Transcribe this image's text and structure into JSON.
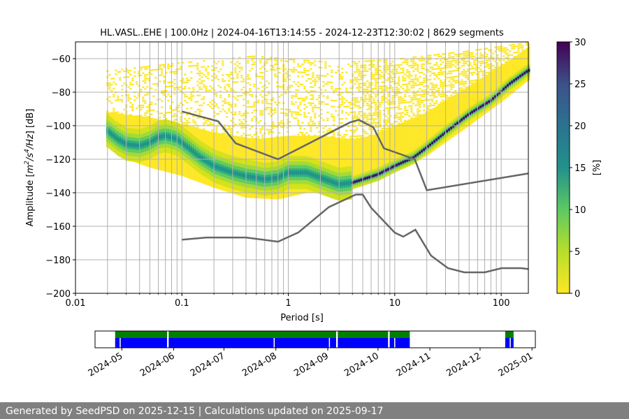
{
  "chart_data": [
    {
      "type": "heatmap",
      "title": "HL.VASL..EHE | 100.0Hz | 2024-04-16T13:14:55 - 2024-12-23T12:30:02 | 8629 segments",
      "xlabel": "Period [s]",
      "ylabel_parts": {
        "lead": "Amplitude [",
        "m": "m",
        "e1": "2",
        "s": "/s",
        "e2": "4",
        "hz": "/Hz",
        "tail": "] [dB]"
      },
      "xscale": "log",
      "xlim": [
        0.01,
        180
      ],
      "ylim": [
        -200,
        -50
      ],
      "xticks": [
        {
          "value": 0.01,
          "label": "0.01"
        },
        {
          "value": 0.1,
          "label": "0.1"
        },
        {
          "value": 1,
          "label": "1"
        },
        {
          "value": 10,
          "label": "10"
        },
        {
          "value": 100,
          "label": "100"
        }
      ],
      "yticks": [
        {
          "value": -60,
          "label": "−60"
        },
        {
          "value": -80,
          "label": "−80"
        },
        {
          "value": -100,
          "label": "−100"
        },
        {
          "value": -120,
          "label": "−120"
        },
        {
          "value": -140,
          "label": "−140"
        },
        {
          "value": -160,
          "label": "−160"
        },
        {
          "value": -180,
          "label": "−180"
        },
        {
          "value": -200,
          "label": "−200"
        }
      ],
      "grid": true,
      "colorbar": {
        "label": "[%]",
        "min": 0,
        "max": 30,
        "ticks": [
          "0",
          "5",
          "10",
          "15",
          "20",
          "25",
          "30"
        ],
        "colormap": [
          "#fde725",
          "#5ec962",
          "#21918c",
          "#3b528b",
          "#440154"
        ]
      },
      "psd_mode": [
        [
          0.02,
          -103
        ],
        [
          0.025,
          -108
        ],
        [
          0.03,
          -111
        ],
        [
          0.04,
          -112
        ],
        [
          0.05,
          -110
        ],
        [
          0.06,
          -107
        ],
        [
          0.07,
          -106
        ],
        [
          0.09,
          -108
        ],
        [
          0.12,
          -114
        ],
        [
          0.15,
          -119
        ],
        [
          0.2,
          -124
        ],
        [
          0.3,
          -128
        ],
        [
          0.4,
          -130
        ],
        [
          0.5,
          -131
        ],
        [
          0.6,
          -132
        ],
        [
          0.8,
          -131
        ],
        [
          1.0,
          -128
        ],
        [
          1.5,
          -128
        ],
        [
          2.0,
          -131
        ],
        [
          3.0,
          -135
        ],
        [
          4.0,
          -134
        ],
        [
          5.0,
          -132
        ],
        [
          7.0,
          -129
        ],
        [
          10.0,
          -124
        ],
        [
          15.0,
          -119
        ],
        [
          20.0,
          -113
        ],
        [
          30.0,
          -104
        ],
        [
          50.0,
          -93
        ],
        [
          80.0,
          -85
        ],
        [
          120.0,
          -75
        ],
        [
          180.0,
          -67
        ]
      ],
      "psd_low": [
        [
          0.02,
          -110
        ],
        [
          0.03,
          -120
        ],
        [
          0.05,
          -125
        ],
        [
          0.1,
          -130
        ],
        [
          0.2,
          -137
        ],
        [
          0.4,
          -143
        ],
        [
          0.8,
          -144
        ],
        [
          1.5,
          -140
        ],
        [
          3.0,
          -139
        ],
        [
          5.0,
          -135
        ],
        [
          10.0,
          -127
        ],
        [
          20.0,
          -118
        ],
        [
          50.0,
          -100
        ],
        [
          100.0,
          -86
        ],
        [
          180.0,
          -73
        ]
      ],
      "psd_high": [
        [
          0.02,
          -92
        ],
        [
          0.05,
          -95
        ],
        [
          0.1,
          -99
        ],
        [
          0.2,
          -104
        ],
        [
          0.5,
          -108
        ],
        [
          1.0,
          -106
        ],
        [
          2.0,
          -106
        ],
        [
          4.0,
          -108
        ],
        [
          6.0,
          -106
        ],
        [
          10.0,
          -100
        ],
        [
          20.0,
          -92
        ],
        [
          40.0,
          -80
        ],
        [
          80.0,
          -68
        ],
        [
          140.0,
          -58
        ],
        [
          180.0,
          -53
        ]
      ],
      "sparse_band": [
        [
          0.02,
          -67
        ],
        [
          0.1,
          -62
        ],
        [
          0.5,
          -58
        ],
        [
          1.0,
          -60
        ],
        [
          3.0,
          -62
        ],
        [
          10.0,
          -60
        ],
        [
          50.0,
          -55
        ],
        [
          180.0,
          -50
        ]
      ],
      "nhnm": [
        [
          0.1,
          -91.5
        ],
        [
          0.22,
          -97.4
        ],
        [
          0.32,
          -110.5
        ],
        [
          0.8,
          -120.0
        ],
        [
          3.8,
          -98.0
        ],
        [
          4.6,
          -96.5
        ],
        [
          6.3,
          -101.0
        ],
        [
          7.9,
          -113.5
        ],
        [
          15.4,
          -120.0
        ],
        [
          20.0,
          -138.5
        ],
        [
          180.0,
          -128.5
        ]
      ],
      "nlnm": [
        [
          0.1,
          -168.0
        ],
        [
          0.17,
          -166.7
        ],
        [
          0.4,
          -166.7
        ],
        [
          0.8,
          -169.2
        ],
        [
          1.24,
          -163.7
        ],
        [
          2.4,
          -148.6
        ],
        [
          4.3,
          -141.1
        ],
        [
          5.0,
          -141.1
        ],
        [
          6.0,
          -149.0
        ],
        [
          10.0,
          -163.8
        ],
        [
          12.0,
          -166.2
        ],
        [
          15.6,
          -162.1
        ],
        [
          21.9,
          -177.5
        ],
        [
          31.6,
          -185.0
        ],
        [
          45.0,
          -187.5
        ],
        [
          70.0,
          -187.5
        ],
        [
          101.0,
          -185.0
        ],
        [
          154.0,
          -185.0
        ],
        [
          180.0,
          -185.5
        ]
      ]
    },
    {
      "type": "timeline",
      "start": "2024-04-16",
      "end": "2024-12-23",
      "xlim": [
        "2024-04-15",
        "2025-01-03"
      ],
      "tick_labels": [
        "2024-05",
        "2024-06",
        "2024-07",
        "2024-08",
        "2024-09",
        "2024-10",
        "2024-11",
        "2024-12",
        "2025-01"
      ],
      "tick_dates": [
        "2024-05-01",
        "2024-06-01",
        "2024-07-01",
        "2024-08-01",
        "2024-09-01",
        "2024-10-01",
        "2024-11-01",
        "2024-12-01",
        "2025-01-01"
      ],
      "availability_color": "#0000ff",
      "computed_color": "#008000",
      "data_spans": [
        [
          "2024-04-27",
          "2024-05-28"
        ],
        [
          "2024-05-29",
          "2024-09-06"
        ],
        [
          "2024-09-07",
          "2024-10-07"
        ],
        [
          "2024-10-08",
          "2024-10-20"
        ],
        [
          "2024-12-16",
          "2024-12-21"
        ]
      ],
      "data_gaps_markers": [
        "2024-04-30",
        "2024-07-31",
        "2024-09-02",
        "2024-10-11",
        "2024-12-19"
      ]
    }
  ],
  "footer": {
    "text": "Generated by SeedPSD on 2025-12-15 | Calculations updated on 2025-09-17"
  }
}
